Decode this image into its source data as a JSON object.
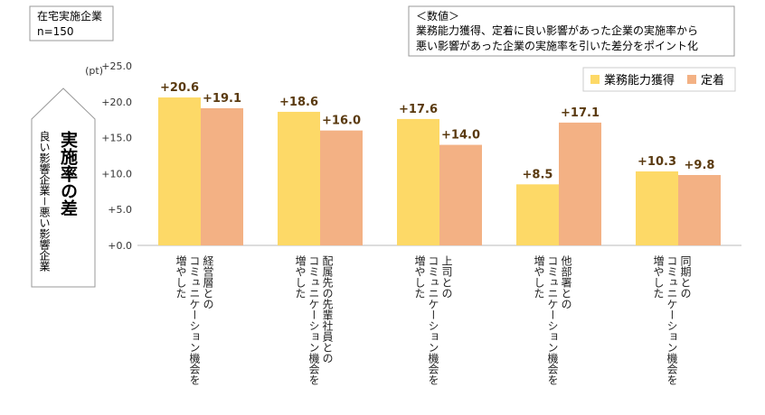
{
  "sample_box": {
    "line1": "在宅実施企業",
    "line2": "n=150"
  },
  "note_box": {
    "line1": "＜数値＞",
    "line2": "業務能力獲得、定着に良い影響があった企業の実施率から",
    "line3": "悪い影響があった企業の実施率を引いた差分をポイント化"
  },
  "yaxis_box": {
    "title": "実施率の差",
    "subtitle": "良い影響企業－悪い影響企業"
  },
  "colors": {
    "series1": "#FDD967",
    "series2": "#F3B184",
    "label": "#5A3A10"
  },
  "chart_data": {
    "type": "bar",
    "unit_label": "(pt)",
    "ylim": [
      0,
      25
    ],
    "yticks": [
      "+0.0",
      "+5.0",
      "+10.0",
      "+15.0",
      "+20.0",
      "+25.0"
    ],
    "ytick_values": [
      0,
      5,
      10,
      15,
      20,
      25
    ],
    "categories": [
      [
        "経営層との",
        "コミュニケーション機会を",
        "増やした"
      ],
      [
        "配属先の先輩社員との",
        "コミュニケーション機会を",
        "増やした"
      ],
      [
        "上司との",
        "コミュニケーション機会を",
        "増やした"
      ],
      [
        "他部署との",
        "コミュニケーション機会を",
        "増やした"
      ],
      [
        "同期との",
        "コミュニケーション機会を",
        "増やした"
      ]
    ],
    "series": [
      {
        "name": "業務能力獲得",
        "values": [
          20.6,
          18.6,
          17.6,
          8.5,
          10.3
        ],
        "labels": [
          "+20.6",
          "+18.6",
          "+17.6",
          "+8.5",
          "+10.3"
        ]
      },
      {
        "name": "定着",
        "values": [
          19.1,
          16.0,
          14.0,
          17.1,
          9.8
        ],
        "labels": [
          "+19.1",
          "+16.0",
          "+14.0",
          "+17.1",
          "+9.8"
        ]
      }
    ],
    "legend": "top-right"
  }
}
